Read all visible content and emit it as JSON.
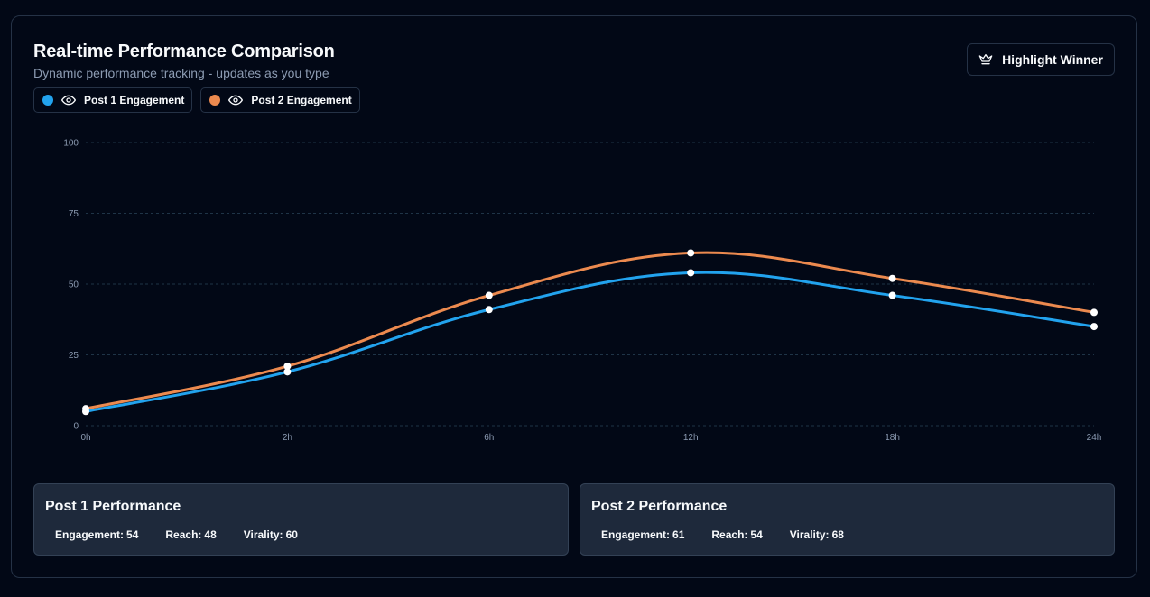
{
  "header": {
    "title": "Real-time Performance Comparison",
    "subtitle": "Dynamic performance tracking - updates as you type",
    "highlight_label": "Highlight Winner",
    "highlight_icon": "crown-icon"
  },
  "legend": [
    {
      "label": "Post 1 Engagement",
      "color": "#22a3ee",
      "icon": "eye-icon"
    },
    {
      "label": "Post 2 Engagement",
      "color": "#ec8a4f",
      "icon": "eye-icon"
    }
  ],
  "chart_data": {
    "type": "line",
    "categories": [
      "0h",
      "2h",
      "6h",
      "12h",
      "18h",
      "24h"
    ],
    "series": [
      {
        "name": "Post 1 Engagement",
        "color": "#22a3ee",
        "values": [
          5,
          19,
          41,
          54,
          46,
          35
        ]
      },
      {
        "name": "Post 2 Engagement",
        "color": "#ec8a4f",
        "values": [
          6,
          21,
          46,
          61,
          52,
          40
        ]
      }
    ],
    "ylim": [
      0,
      100
    ],
    "yticks": [
      0,
      25,
      50,
      75,
      100
    ],
    "grid": true,
    "xlabel": "",
    "ylabel": ""
  },
  "stats": [
    {
      "title": "Post 1 Performance",
      "engagement_label": "Engagement:",
      "engagement": "54",
      "reach_label": "Reach:",
      "reach": "48",
      "virality_label": "Virality:",
      "virality": "60"
    },
    {
      "title": "Post 2 Performance",
      "engagement_label": "Engagement:",
      "engagement": "61",
      "reach_label": "Reach:",
      "reach": "54",
      "virality_label": "Virality:",
      "virality": "68"
    }
  ]
}
